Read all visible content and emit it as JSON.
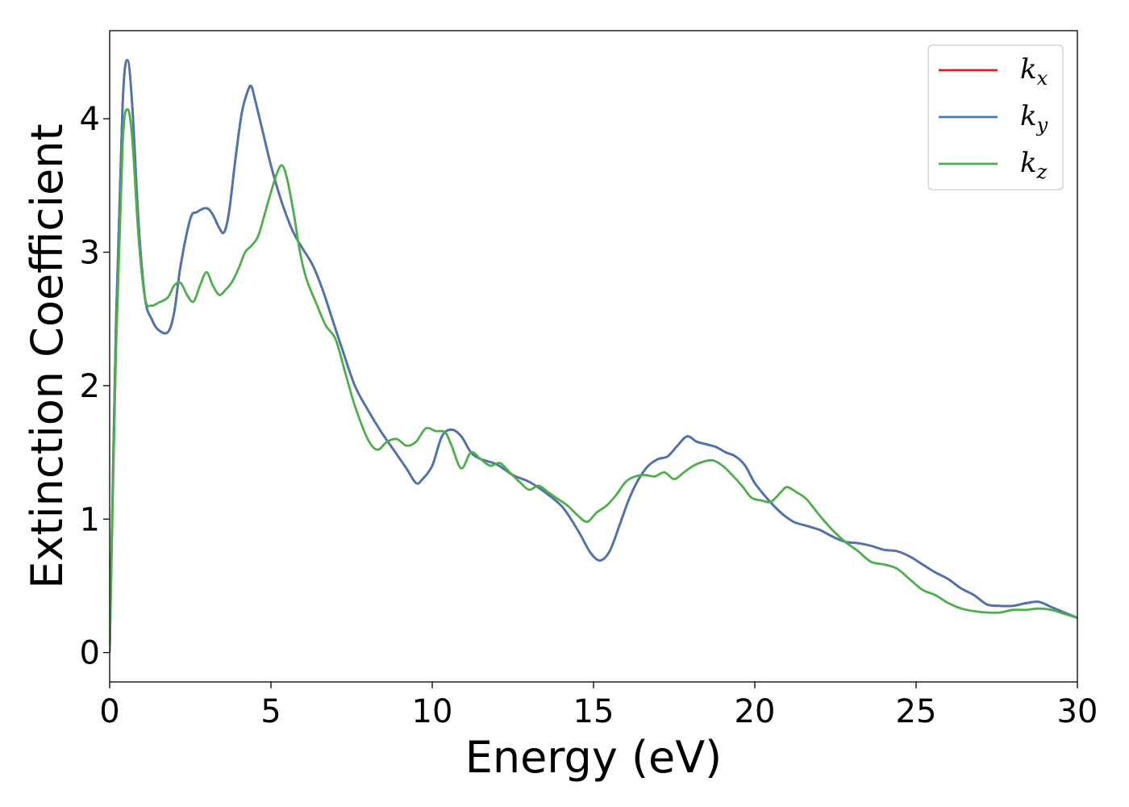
{
  "chart_data": {
    "type": "line",
    "title": "",
    "xlabel": "Energy (eV)",
    "ylabel": "Extinction Coefficient",
    "xlim": [
      0,
      30
    ],
    "ylim": [
      -0.22,
      4.66
    ],
    "xticks": [
      0,
      5,
      10,
      15,
      20,
      25,
      30
    ],
    "yticks": [
      0,
      1,
      2,
      3,
      4
    ],
    "grid": false,
    "legend_position": "top-right",
    "series": [
      {
        "name": "k_x",
        "color": "#e41a1c",
        "x": [
          0,
          0.2,
          0.4,
          0.55,
          0.7,
          0.9,
          1.1,
          1.3,
          1.5,
          1.8,
          2.0,
          2.2,
          2.5,
          2.7,
          3.0,
          3.2,
          3.4,
          3.55,
          3.7,
          3.9,
          4.1,
          4.3,
          4.4,
          4.5,
          4.7,
          5.0,
          5.3,
          5.6,
          5.8,
          6.0,
          6.3,
          6.6,
          6.9,
          7.2,
          7.6,
          8.0,
          8.4,
          8.8,
          9.2,
          9.5,
          9.7,
          10.0,
          10.3,
          10.6,
          10.9,
          11.2,
          11.5,
          12.0,
          12.5,
          13.0,
          13.5,
          14.0,
          14.3,
          14.6,
          14.9,
          15.2,
          15.5,
          15.8,
          16.1,
          16.4,
          16.7,
          17.0,
          17.3,
          17.6,
          17.9,
          18.2,
          18.5,
          18.8,
          19.1,
          19.4,
          19.7,
          20.0,
          20.4,
          20.8,
          21.2,
          21.6,
          22.0,
          22.4,
          22.8,
          23.2,
          23.6,
          24.0,
          24.4,
          24.8,
          25.2,
          25.6,
          26.0,
          26.4,
          26.8,
          27.2,
          27.6,
          28.0,
          28.4,
          28.8,
          29.2,
          29.6,
          30.0
        ],
        "y": [
          0.0,
          2.5,
          4.1,
          4.44,
          4.1,
          3.2,
          2.65,
          2.5,
          2.42,
          2.4,
          2.55,
          2.9,
          3.25,
          3.3,
          3.33,
          3.28,
          3.18,
          3.15,
          3.3,
          3.7,
          4.05,
          4.22,
          4.24,
          4.15,
          3.95,
          3.65,
          3.4,
          3.2,
          3.1,
          3.02,
          2.9,
          2.72,
          2.5,
          2.28,
          2.0,
          1.82,
          1.66,
          1.52,
          1.38,
          1.27,
          1.3,
          1.4,
          1.62,
          1.67,
          1.62,
          1.5,
          1.45,
          1.41,
          1.33,
          1.28,
          1.2,
          1.1,
          1.0,
          0.88,
          0.75,
          0.69,
          0.76,
          0.95,
          1.15,
          1.3,
          1.4,
          1.45,
          1.47,
          1.55,
          1.62,
          1.58,
          1.56,
          1.54,
          1.5,
          1.47,
          1.4,
          1.27,
          1.15,
          1.05,
          0.98,
          0.95,
          0.92,
          0.87,
          0.83,
          0.82,
          0.8,
          0.77,
          0.76,
          0.72,
          0.66,
          0.6,
          0.55,
          0.48,
          0.43,
          0.36,
          0.35,
          0.35,
          0.37,
          0.38,
          0.34,
          0.3,
          0.26
        ]
      },
      {
        "name": "k_y",
        "color": "#4a76b0",
        "x": [
          0,
          0.2,
          0.4,
          0.55,
          0.7,
          0.9,
          1.1,
          1.3,
          1.5,
          1.8,
          2.0,
          2.2,
          2.5,
          2.7,
          3.0,
          3.2,
          3.4,
          3.55,
          3.7,
          3.9,
          4.1,
          4.3,
          4.4,
          4.5,
          4.7,
          5.0,
          5.3,
          5.6,
          5.8,
          6.0,
          6.3,
          6.6,
          6.9,
          7.2,
          7.6,
          8.0,
          8.4,
          8.8,
          9.2,
          9.5,
          9.7,
          10.0,
          10.3,
          10.6,
          10.9,
          11.2,
          11.5,
          12.0,
          12.5,
          13.0,
          13.5,
          14.0,
          14.3,
          14.6,
          14.9,
          15.2,
          15.5,
          15.8,
          16.1,
          16.4,
          16.7,
          17.0,
          17.3,
          17.6,
          17.9,
          18.2,
          18.5,
          18.8,
          19.1,
          19.4,
          19.7,
          20.0,
          20.4,
          20.8,
          21.2,
          21.6,
          22.0,
          22.4,
          22.8,
          23.2,
          23.6,
          24.0,
          24.4,
          24.8,
          25.2,
          25.6,
          26.0,
          26.4,
          26.8,
          27.2,
          27.6,
          28.0,
          28.4,
          28.8,
          29.2,
          29.6,
          30.0
        ],
        "y": [
          0.0,
          2.5,
          4.1,
          4.44,
          4.1,
          3.2,
          2.65,
          2.5,
          2.42,
          2.4,
          2.55,
          2.9,
          3.25,
          3.3,
          3.33,
          3.28,
          3.18,
          3.15,
          3.3,
          3.7,
          4.05,
          4.22,
          4.24,
          4.15,
          3.95,
          3.65,
          3.4,
          3.2,
          3.1,
          3.02,
          2.9,
          2.72,
          2.5,
          2.28,
          2.0,
          1.82,
          1.66,
          1.52,
          1.38,
          1.27,
          1.3,
          1.4,
          1.62,
          1.67,
          1.62,
          1.5,
          1.45,
          1.41,
          1.33,
          1.28,
          1.2,
          1.1,
          1.0,
          0.88,
          0.75,
          0.69,
          0.76,
          0.95,
          1.15,
          1.3,
          1.4,
          1.45,
          1.47,
          1.55,
          1.62,
          1.58,
          1.56,
          1.54,
          1.5,
          1.47,
          1.4,
          1.27,
          1.15,
          1.05,
          0.98,
          0.95,
          0.92,
          0.87,
          0.83,
          0.82,
          0.8,
          0.77,
          0.76,
          0.72,
          0.66,
          0.6,
          0.55,
          0.48,
          0.43,
          0.36,
          0.35,
          0.35,
          0.37,
          0.38,
          0.34,
          0.3,
          0.26
        ]
      },
      {
        "name": "k_z",
        "color": "#4daf4a",
        "x": [
          0,
          0.2,
          0.4,
          0.55,
          0.7,
          0.9,
          1.1,
          1.3,
          1.5,
          1.8,
          2.0,
          2.2,
          2.4,
          2.6,
          2.8,
          3.0,
          3.2,
          3.4,
          3.6,
          3.8,
          4.0,
          4.2,
          4.4,
          4.6,
          4.8,
          5.0,
          5.2,
          5.35,
          5.5,
          5.7,
          5.9,
          6.1,
          6.4,
          6.7,
          7.0,
          7.3,
          7.6,
          8.0,
          8.3,
          8.6,
          8.9,
          9.2,
          9.5,
          9.8,
          10.1,
          10.4,
          10.6,
          10.9,
          11.2,
          11.5,
          11.8,
          12.1,
          12.4,
          12.7,
          13.0,
          13.3,
          13.6,
          13.9,
          14.2,
          14.5,
          14.8,
          15.1,
          15.4,
          15.7,
          16.0,
          16.3,
          16.6,
          16.9,
          17.2,
          17.5,
          17.8,
          18.1,
          18.4,
          18.7,
          19.0,
          19.3,
          19.6,
          19.9,
          20.2,
          20.5,
          20.8,
          21.0,
          21.3,
          21.6,
          22.0,
          22.4,
          22.8,
          23.2,
          23.6,
          24.0,
          24.4,
          24.8,
          25.2,
          25.6,
          26.0,
          26.4,
          26.8,
          27.2,
          27.6,
          28.0,
          28.4,
          28.8,
          29.2,
          29.6,
          30.0
        ],
        "y": [
          0.0,
          2.3,
          3.8,
          4.07,
          3.85,
          3.1,
          2.65,
          2.6,
          2.62,
          2.66,
          2.75,
          2.77,
          2.68,
          2.63,
          2.75,
          2.85,
          2.75,
          2.68,
          2.72,
          2.78,
          2.88,
          3.0,
          3.05,
          3.12,
          3.28,
          3.45,
          3.6,
          3.65,
          3.55,
          3.3,
          3.0,
          2.8,
          2.62,
          2.45,
          2.35,
          2.1,
          1.85,
          1.6,
          1.52,
          1.58,
          1.6,
          1.55,
          1.58,
          1.68,
          1.66,
          1.65,
          1.55,
          1.38,
          1.5,
          1.45,
          1.4,
          1.42,
          1.35,
          1.28,
          1.22,
          1.25,
          1.2,
          1.15,
          1.1,
          1.03,
          0.98,
          1.05,
          1.1,
          1.18,
          1.28,
          1.32,
          1.33,
          1.32,
          1.35,
          1.3,
          1.35,
          1.4,
          1.43,
          1.44,
          1.4,
          1.33,
          1.25,
          1.16,
          1.14,
          1.13,
          1.2,
          1.24,
          1.2,
          1.15,
          1.03,
          0.92,
          0.83,
          0.76,
          0.68,
          0.66,
          0.63,
          0.55,
          0.47,
          0.43,
          0.37,
          0.33,
          0.31,
          0.3,
          0.3,
          0.32,
          0.32,
          0.33,
          0.32,
          0.29,
          0.26
        ]
      }
    ]
  }
}
